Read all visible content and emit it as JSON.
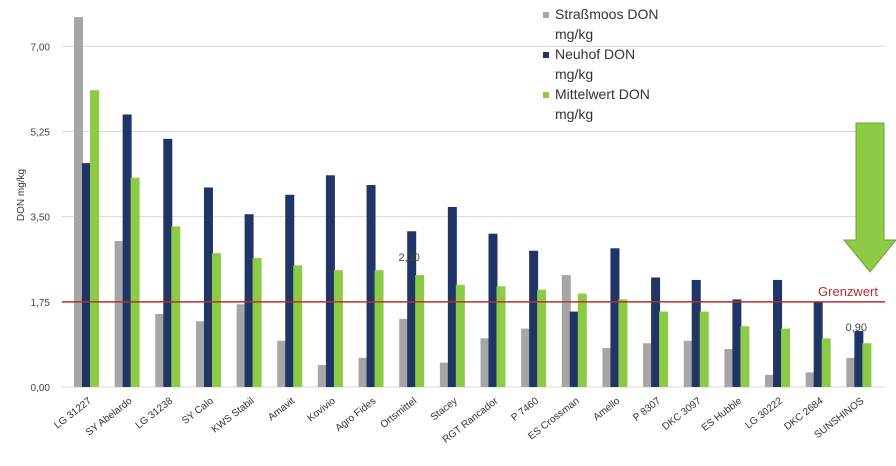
{
  "chart_data": {
    "type": "bar",
    "title": "",
    "xlabel": "",
    "ylabel": "DON mg/kg",
    "ylim": [
      0,
      7.5
    ],
    "yticks": [
      "0,00",
      "1,75",
      "3,50",
      "5,25",
      "7,00"
    ],
    "ytick_values": [
      0,
      1.75,
      3.5,
      5.25,
      7.0
    ],
    "grid": true,
    "legend_position": "top-right",
    "categories": [
      "LG 31227",
      "SY Abelardo",
      "LG 31238",
      "SY Calo",
      "KWS Stabil",
      "Amavit",
      "Kovivio",
      "Agro Fides",
      "Ortsmittel",
      "Stacey",
      "RGT Rancador",
      "P 7460",
      "ES Crossman",
      "Amello",
      "P 8307",
      "DKC 3097",
      "ES Hubble",
      "LG 30222",
      "DKC 2684",
      "SUNSHINOS"
    ],
    "series": [
      {
        "name": "Straßmoos DON mg/kg",
        "color": "#a6a6a6",
        "values": [
          7.6,
          3.0,
          1.5,
          1.35,
          1.7,
          0.95,
          0.45,
          0.6,
          1.4,
          0.5,
          1.0,
          1.2,
          2.3,
          0.8,
          0.9,
          0.95,
          0.78,
          0.25,
          0.3,
          0.6
        ]
      },
      {
        "name": "Neuhof DON mg/kg",
        "color": "#1f3566",
        "values": [
          4.6,
          5.6,
          5.1,
          4.1,
          3.55,
          3.95,
          4.35,
          4.15,
          3.2,
          3.7,
          3.15,
          2.8,
          1.55,
          2.85,
          2.25,
          2.2,
          1.8,
          2.2,
          1.75,
          1.15
        ]
      },
      {
        "name": "Mittelwert DON mg/kg",
        "color": "#8dcb47",
        "values": [
          6.1,
          4.3,
          3.3,
          2.75,
          2.65,
          2.5,
          2.4,
          2.4,
          2.3,
          2.1,
          2.07,
          2.0,
          1.92,
          1.8,
          1.55,
          1.55,
          1.25,
          1.2,
          1.0,
          0.9
        ]
      }
    ],
    "annotations": [
      {
        "text": "2,30",
        "category": "Ortsmittel"
      },
      {
        "text": "0,90",
        "category": "SUNSHINOS"
      }
    ],
    "reference_line": {
      "value": 1.75,
      "label": "Grenzwert",
      "color": "#b5302d"
    },
    "arrow_color": "#8dcb47"
  }
}
